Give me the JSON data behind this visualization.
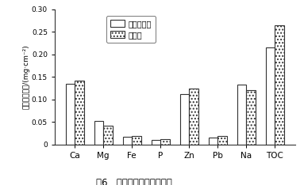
{
  "categories": [
    "Ca",
    "Mg",
    "Fe",
    "P",
    "Zn",
    "Pb",
    "Na",
    "TOC"
  ],
  "series1_name": "双膜纳滤膜",
  "series2_name": "纳滤膜",
  "series1_values": [
    0.135,
    0.051,
    0.016,
    0.01,
    0.112,
    0.015,
    0.132,
    0.215
  ],
  "series2_values": [
    0.142,
    0.042,
    0.018,
    0.012,
    0.123,
    0.018,
    0.121,
    0.265
  ],
  "ylabel": "污染物沉积量/(mg·cm⁻²)",
  "ylim": [
    0,
    0.3
  ],
  "yticks": [
    0,
    0.05,
    0.1,
    0.15,
    0.2,
    0.25,
    0.3
  ],
  "ytick_labels": [
    "0",
    "0.05",
    "0.10",
    "0.15",
    "0.20",
    "0.25",
    "0.30"
  ],
  "caption": "图6   纳滤膜表面污染物沉积",
  "bar_color1": "#ffffff",
  "bar_edgecolor": "#333333",
  "bar_hatch2": "....",
  "bar_width": 0.32,
  "figsize": [
    3.83,
    2.34
  ],
  "dpi": 100,
  "bg_color": "#ffffff"
}
